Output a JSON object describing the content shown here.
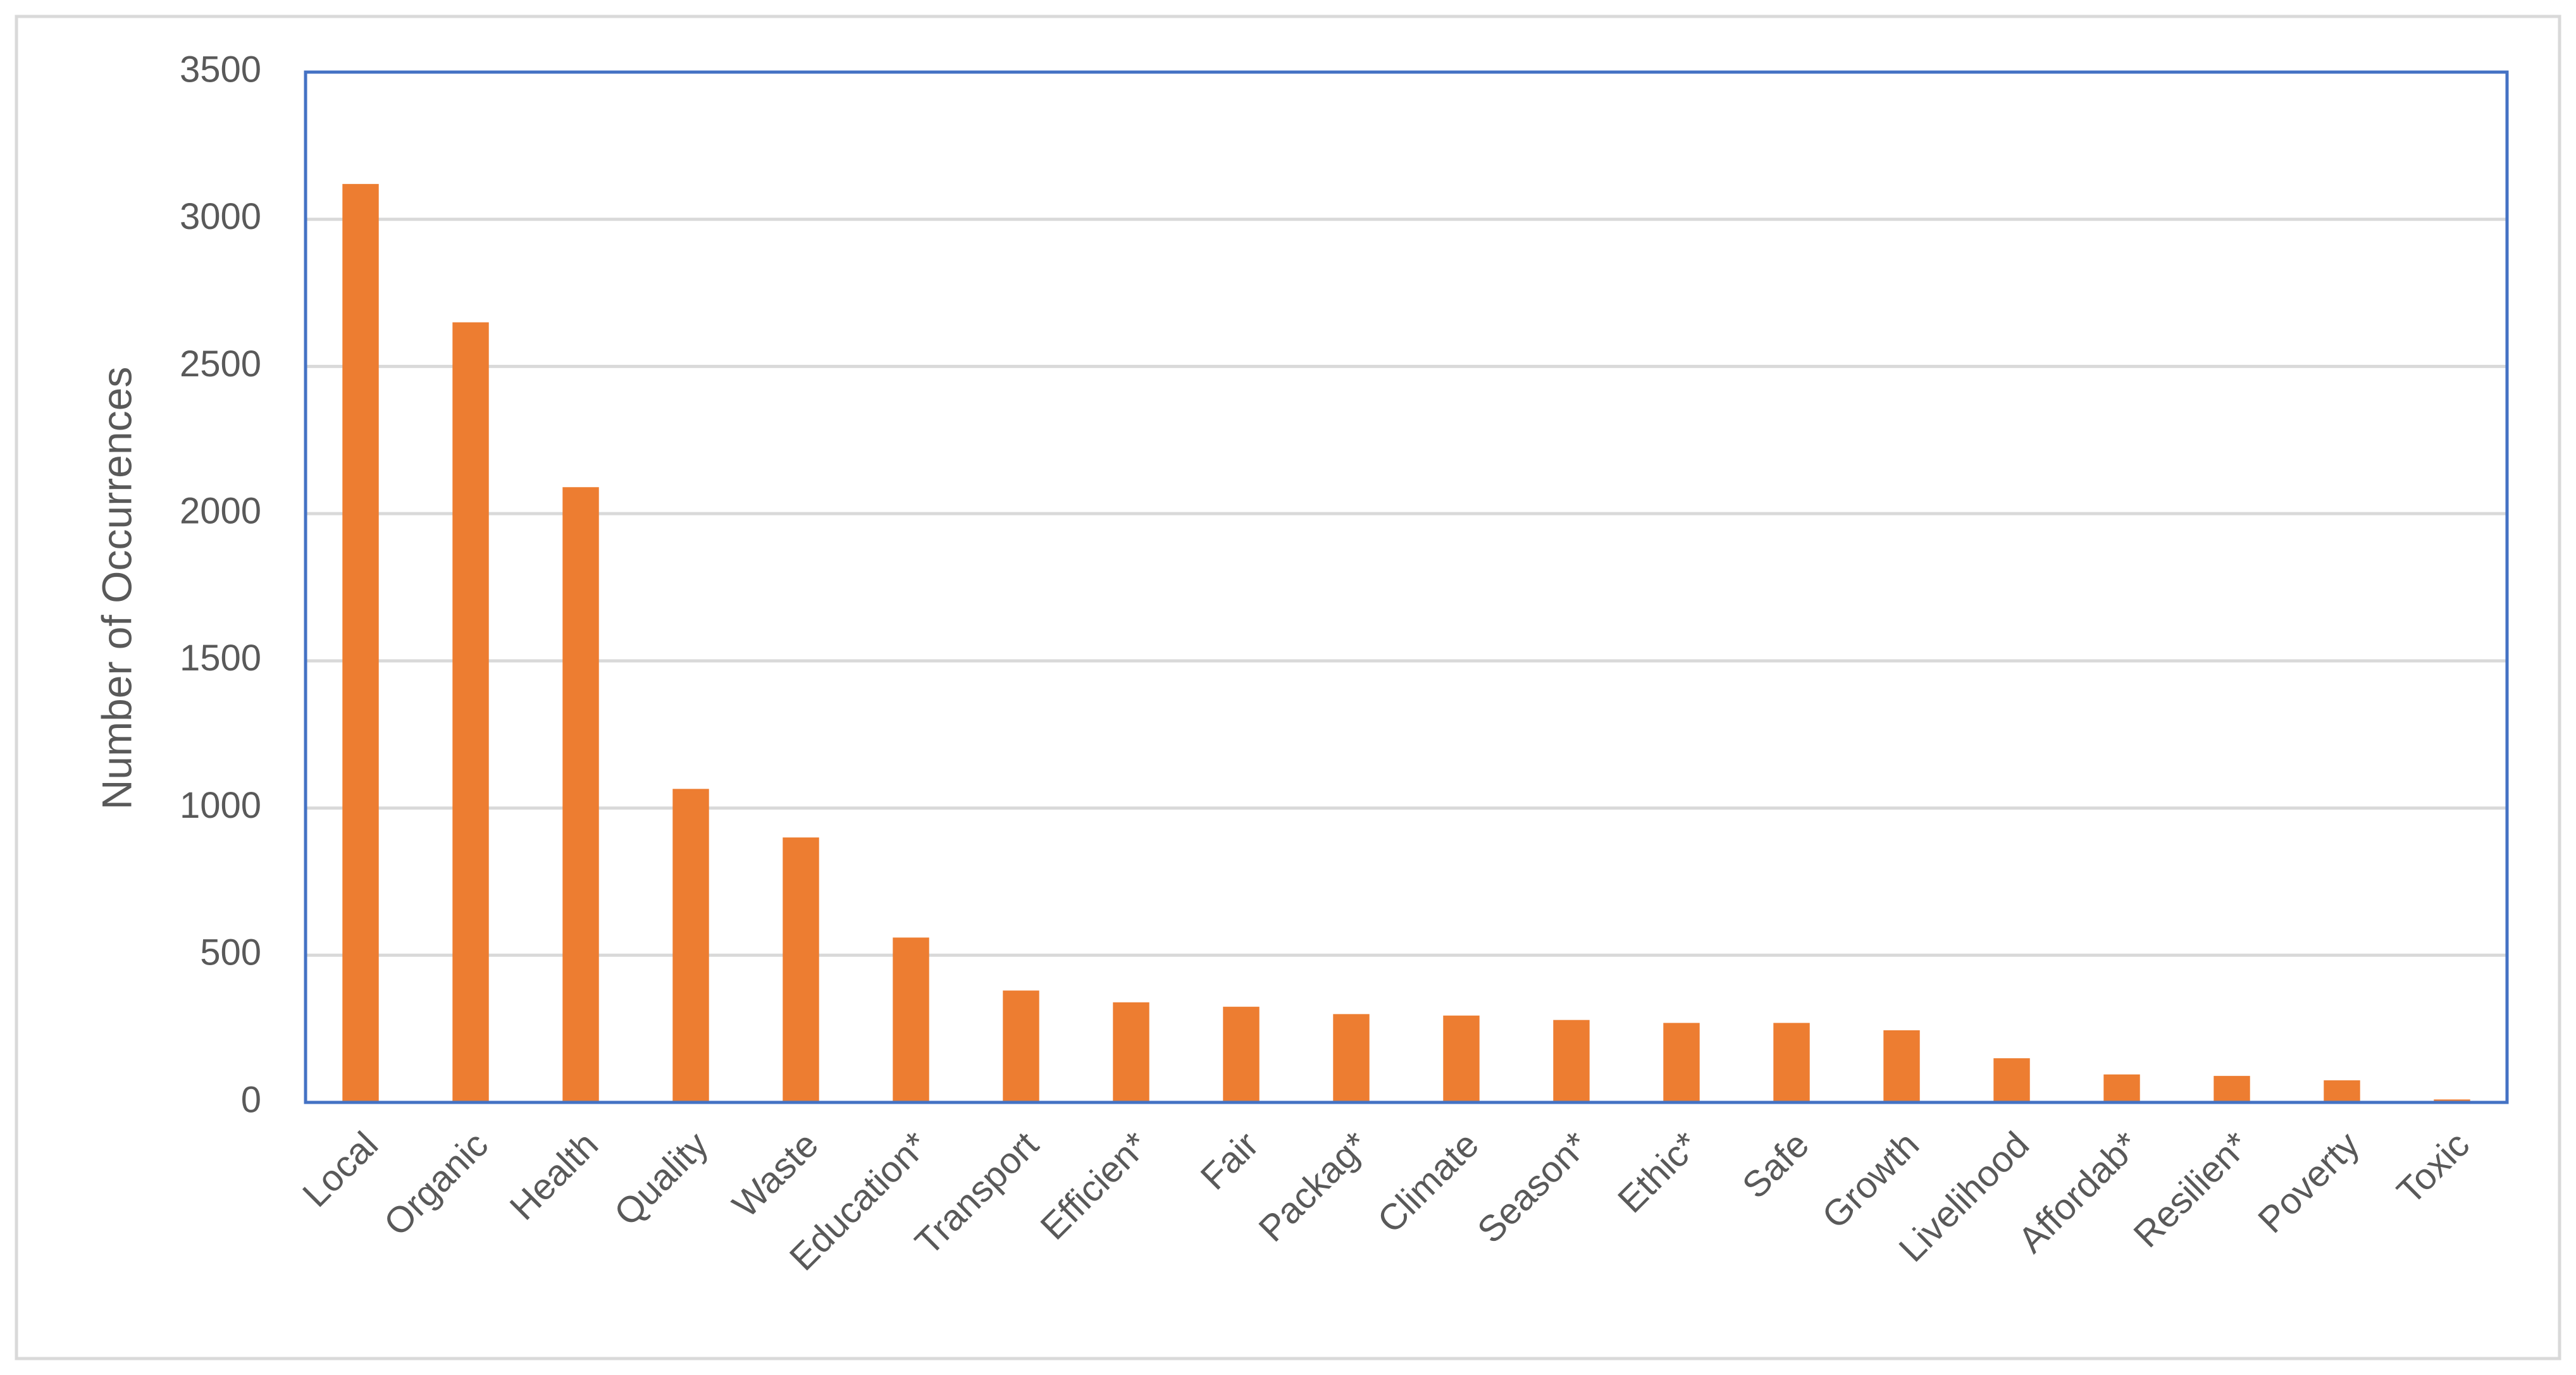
{
  "chart_data": {
    "type": "bar",
    "y_label": "Number of Occurrences",
    "categories": [
      "Local",
      "Organic",
      "Health",
      "Quality",
      "Waste",
      "Education*",
      "Transport",
      "Efficien*",
      "Fair",
      "Packag*",
      "Climate",
      "Season*",
      "Ethic*",
      "Safe",
      "Growth",
      "Livelihood",
      "Affordab*",
      "Resilien*",
      "Poverty",
      "Toxic"
    ],
    "values": [
      3120,
      2650,
      2090,
      1065,
      900,
      560,
      380,
      340,
      325,
      300,
      295,
      280,
      270,
      270,
      245,
      150,
      95,
      90,
      75,
      10
    ],
    "color": "#ed7d31",
    "ylim": [
      0,
      3500
    ],
    "yticks": [
      0,
      500,
      1000,
      1500,
      2000,
      2500,
      3000,
      3500
    ],
    "grid": true
  }
}
